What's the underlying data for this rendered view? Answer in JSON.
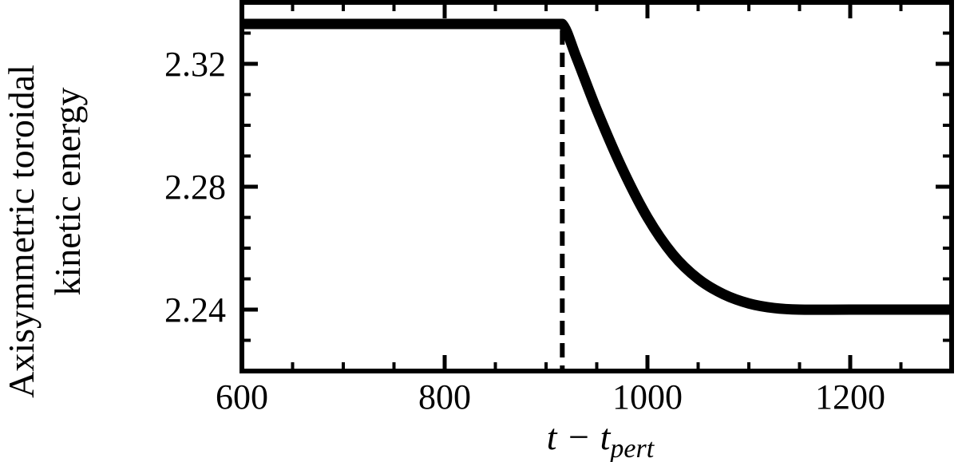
{
  "chart_data": {
    "type": "line",
    "title": "",
    "xlabel": {
      "main": "t − t",
      "subscript": "pert"
    },
    "ylabel": {
      "line1": "Axisymmetric toroidal",
      "line2": "kinetic energy"
    },
    "xlim": [
      600,
      1300
    ],
    "ylim": [
      2.22,
      2.34
    ],
    "x_ticks": [
      600,
      800,
      1000,
      1200
    ],
    "x_tick_labels": [
      "600",
      "800",
      "1000",
      "1200"
    ],
    "y_ticks": [
      2.24,
      2.28,
      2.32
    ],
    "y_tick_labels": [
      "2.24",
      "2.28",
      "2.32"
    ],
    "x_minor_step": 50,
    "y_minor_step": 0.01,
    "grid": false,
    "vline": {
      "x": 916,
      "style": "dashed",
      "color": "#000000"
    },
    "series": [
      {
        "color": "#000000",
        "x": [
          600,
          700,
          800,
          900,
          916,
          930,
          950,
          975,
          1000,
          1025,
          1050,
          1075,
          1100,
          1125,
          1150,
          1200,
          1250,
          1300
        ],
        "y": [
          2.333,
          2.333,
          2.333,
          2.333,
          2.333,
          2.322,
          2.305,
          2.286,
          2.27,
          2.258,
          2.25,
          2.245,
          2.242,
          2.2405,
          2.24,
          2.24,
          2.24,
          2.24
        ]
      }
    ]
  }
}
